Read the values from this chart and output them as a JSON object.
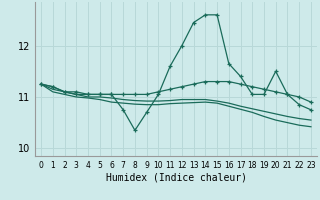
{
  "xlabel": "Humidex (Indice chaleur)",
  "bg_color": "#ceeaea",
  "grid_color": "#b8d8d8",
  "line_color": "#1a6b5a",
  "x": [
    0,
    1,
    2,
    3,
    4,
    5,
    6,
    7,
    8,
    9,
    10,
    11,
    12,
    13,
    14,
    15,
    16,
    17,
    18,
    19,
    20,
    21,
    22,
    23
  ],
  "line1_main": [
    11.25,
    11.2,
    11.1,
    11.1,
    11.05,
    11.05,
    11.05,
    10.75,
    10.35,
    10.7,
    11.05,
    11.6,
    12.0,
    12.45,
    12.6,
    12.6,
    11.65,
    11.4,
    11.05,
    11.05,
    11.5,
    11.05,
    10.85,
    10.75
  ],
  "line2_avg_hi": [
    11.25,
    11.2,
    11.1,
    11.05,
    11.05,
    11.05,
    11.05,
    11.05,
    11.05,
    11.05,
    11.1,
    11.15,
    11.2,
    11.25,
    11.3,
    11.3,
    11.3,
    11.25,
    11.2,
    11.15,
    11.1,
    11.05,
    11.0,
    10.9
  ],
  "line3_avg_lo": [
    11.25,
    11.1,
    11.05,
    11.0,
    10.98,
    10.95,
    10.9,
    10.88,
    10.86,
    10.85,
    10.85,
    10.87,
    10.88,
    10.89,
    10.9,
    10.88,
    10.82,
    10.76,
    10.7,
    10.62,
    10.55,
    10.5,
    10.45,
    10.42
  ],
  "line4_trend": [
    11.25,
    11.15,
    11.1,
    11.05,
    11.0,
    11.0,
    10.98,
    10.95,
    10.93,
    10.92,
    10.92,
    10.93,
    10.95,
    10.95,
    10.95,
    10.92,
    10.88,
    10.82,
    10.77,
    10.72,
    10.67,
    10.62,
    10.58,
    10.55
  ],
  "ylim": [
    9.85,
    12.85
  ],
  "yticks": [
    10,
    11,
    12
  ],
  "xtick_fontsize": 5.5,
  "ytick_fontsize": 7,
  "xlabel_fontsize": 7
}
